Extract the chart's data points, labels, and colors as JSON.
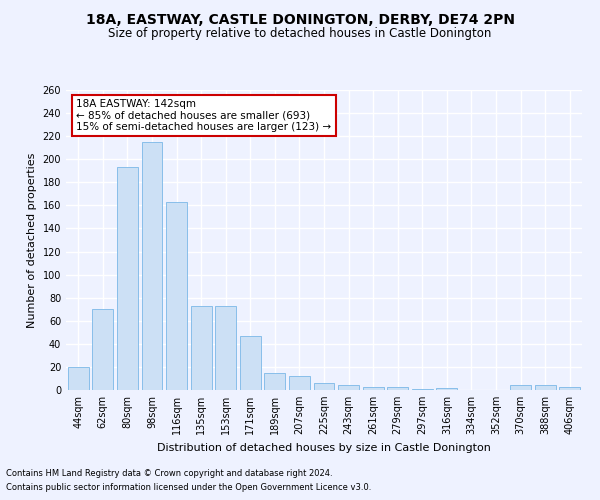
{
  "title1": "18A, EASTWAY, CASTLE DONINGTON, DERBY, DE74 2PN",
  "title2": "Size of property relative to detached houses in Castle Donington",
  "xlabel": "Distribution of detached houses by size in Castle Donington",
  "ylabel": "Number of detached properties",
  "categories": [
    "44sqm",
    "62sqm",
    "80sqm",
    "98sqm",
    "116sqm",
    "135sqm",
    "153sqm",
    "171sqm",
    "189sqm",
    "207sqm",
    "225sqm",
    "243sqm",
    "261sqm",
    "279sqm",
    "297sqm",
    "316sqm",
    "334sqm",
    "352sqm",
    "370sqm",
    "388sqm",
    "406sqm"
  ],
  "values": [
    20,
    70,
    193,
    215,
    163,
    73,
    73,
    47,
    15,
    12,
    6,
    4,
    3,
    3,
    1,
    2,
    0,
    0,
    4,
    4,
    3
  ],
  "bar_color": "#cce0f5",
  "bar_edge_color": "#7ab8e8",
  "annotation_box_text": "18A EASTWAY: 142sqm\n← 85% of detached houses are smaller (693)\n15% of semi-detached houses are larger (123) →",
  "annotation_box_color": "#ffffff",
  "annotation_box_edge": "#cc0000",
  "footer1": "Contains HM Land Registry data © Crown copyright and database right 2024.",
  "footer2": "Contains public sector information licensed under the Open Government Licence v3.0.",
  "ylim": [
    0,
    260
  ],
  "yticks": [
    0,
    20,
    40,
    60,
    80,
    100,
    120,
    140,
    160,
    180,
    200,
    220,
    240,
    260
  ],
  "bg_color": "#eef2ff",
  "grid_color": "#ffffff",
  "title1_fontsize": 10,
  "title2_fontsize": 8.5,
  "tick_fontsize": 7,
  "ylabel_fontsize": 8,
  "xlabel_fontsize": 8,
  "ann_fontsize": 7.5,
  "footer_fontsize": 6
}
